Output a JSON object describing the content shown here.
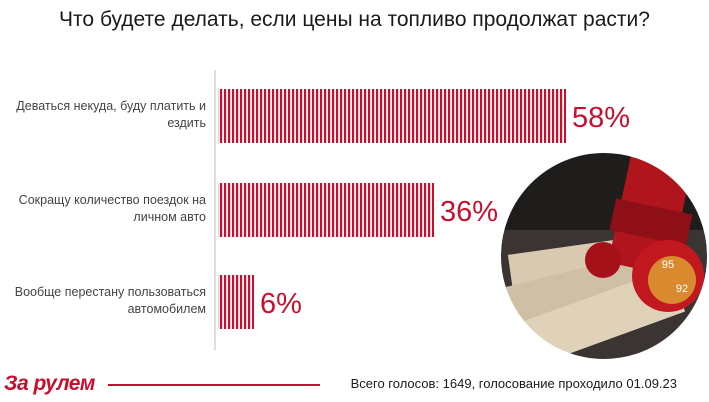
{
  "title": "Что будете делать, если цены на топливо продолжат расти?",
  "chart_data": {
    "type": "bar",
    "orientation": "horizontal",
    "categories": [
      [
        "Деваться некуда, буду платить и",
        "ездить"
      ],
      [
        "Сокращу количество поездок на",
        "личном авто"
      ],
      [
        "Вообще перестану пользоваться",
        "автомобилем"
      ]
    ],
    "values": [
      58,
      36,
      6
    ],
    "value_labels": [
      "58%",
      "36%",
      "6%"
    ],
    "bar_color": "#c8102e",
    "xlim": [
      0,
      100
    ],
    "grid": false
  },
  "illustration": {
    "description_icon": "fuel-nozzle-banknotes-photo",
    "octane_labels": [
      "95",
      "92"
    ]
  },
  "brand": {
    "logo": "За рулем",
    "color": "#c8102e"
  },
  "footer": "Всего голосов: 1649, голосование проходило 01.09.23"
}
